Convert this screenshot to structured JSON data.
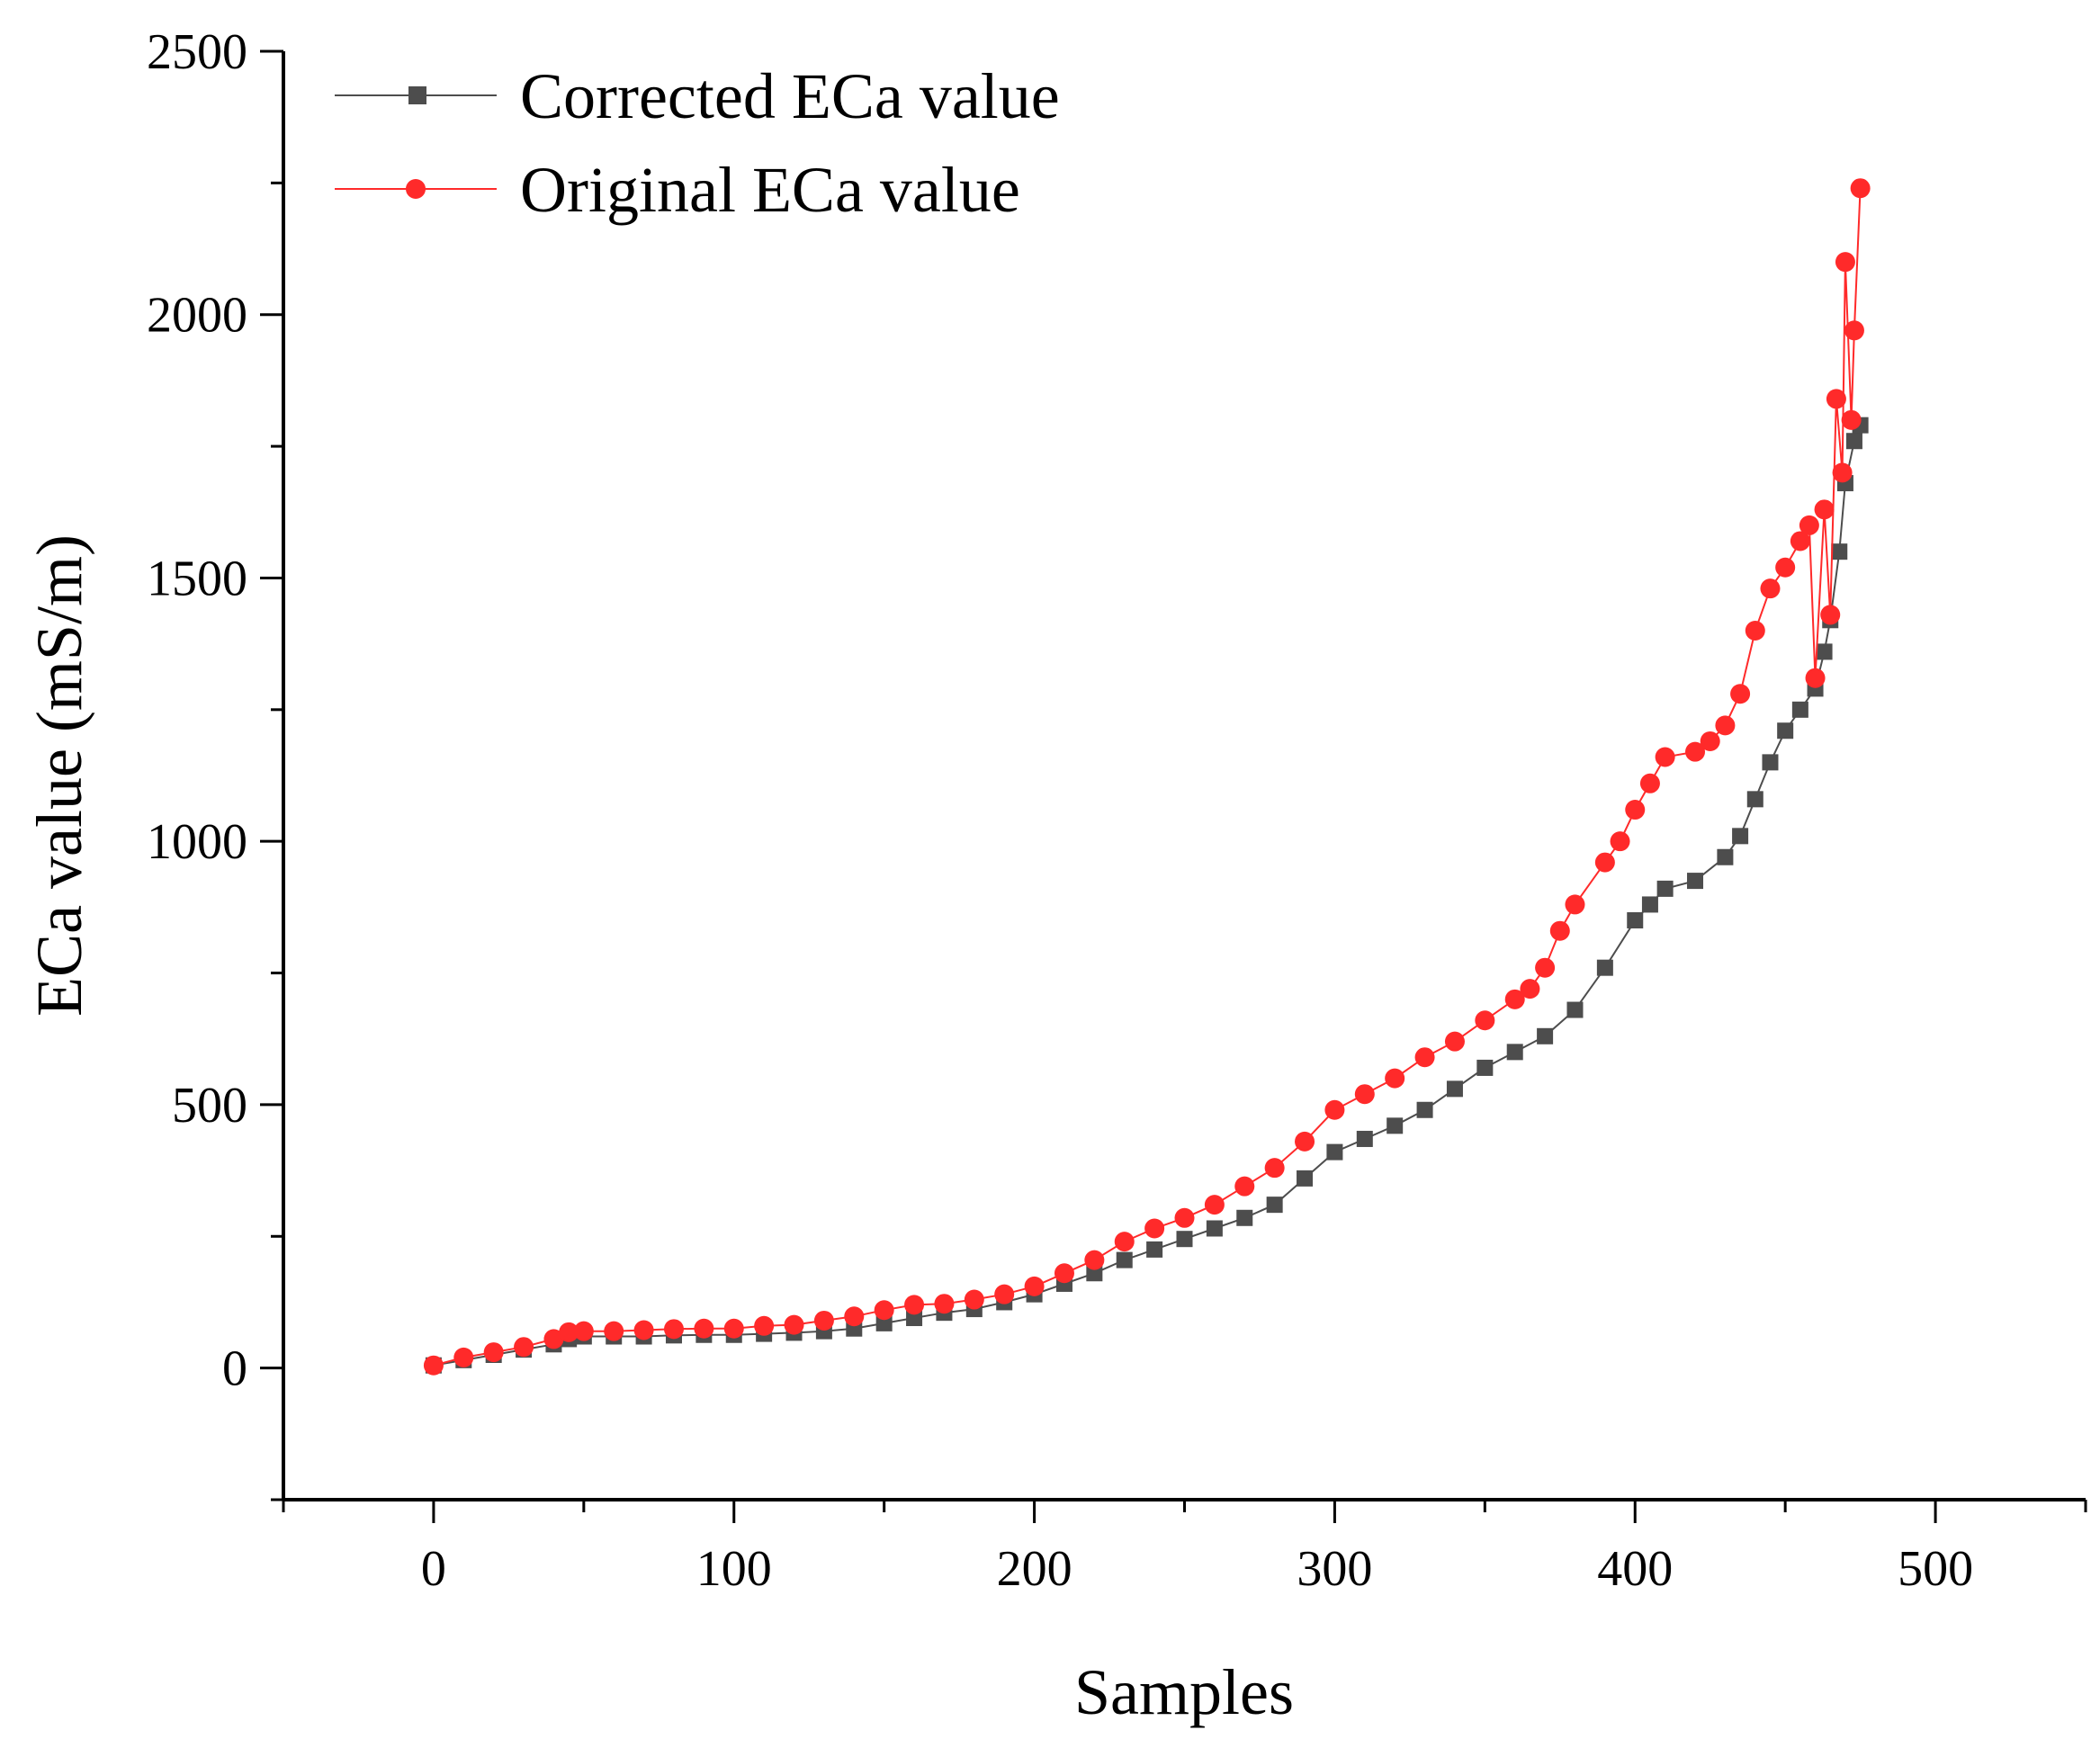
{
  "chart_data": {
    "type": "line",
    "title": "",
    "xlabel": "Samples",
    "ylabel": "ECa value (mS/m)",
    "xlim": [
      -50,
      550
    ],
    "ylim": [
      -250,
      2500
    ],
    "xticks": [
      0,
      100,
      200,
      300,
      400,
      500
    ],
    "yticks": [
      0,
      500,
      1000,
      1500,
      2000,
      2500
    ],
    "x_minor_step": 50,
    "y_minor_step": 250,
    "grid": false,
    "legend_position": "top-left",
    "colors": {
      "corrected": "#4d4d4d",
      "original": "#ff2a2a"
    },
    "markers": {
      "corrected": "square",
      "original": "circle"
    },
    "series": [
      {
        "name": "Corrected ECa value",
        "points": [
          [
            0,
            5
          ],
          [
            10,
            15
          ],
          [
            20,
            25
          ],
          [
            30,
            35
          ],
          [
            40,
            45
          ],
          [
            45,
            55
          ],
          [
            50,
            60
          ],
          [
            60,
            60
          ],
          [
            70,
            60
          ],
          [
            80,
            62
          ],
          [
            90,
            63
          ],
          [
            100,
            63
          ],
          [
            110,
            65
          ],
          [
            120,
            67
          ],
          [
            130,
            70
          ],
          [
            140,
            75
          ],
          [
            150,
            85
          ],
          [
            160,
            95
          ],
          [
            170,
            105
          ],
          [
            180,
            112
          ],
          [
            190,
            125
          ],
          [
            200,
            140
          ],
          [
            210,
            160
          ],
          [
            220,
            180
          ],
          [
            230,
            205
          ],
          [
            240,
            225
          ],
          [
            250,
            245
          ],
          [
            260,
            265
          ],
          [
            270,
            285
          ],
          [
            280,
            310
          ],
          [
            290,
            360
          ],
          [
            300,
            410
          ],
          [
            310,
            435
          ],
          [
            320,
            460
          ],
          [
            330,
            490
          ],
          [
            340,
            530
          ],
          [
            350,
            570
          ],
          [
            360,
            600
          ],
          [
            370,
            630
          ],
          [
            380,
            680
          ],
          [
            390,
            760
          ],
          [
            400,
            850
          ],
          [
            405,
            880
          ],
          [
            410,
            910
          ],
          [
            420,
            925
          ],
          [
            430,
            970
          ],
          [
            435,
            1010
          ],
          [
            440,
            1080
          ],
          [
            445,
            1150
          ],
          [
            450,
            1210
          ],
          [
            455,
            1250
          ],
          [
            460,
            1290
          ],
          [
            463,
            1360
          ],
          [
            465,
            1420
          ],
          [
            468,
            1550
          ],
          [
            470,
            1680
          ],
          [
            473,
            1760
          ],
          [
            475,
            1790
          ]
        ]
      },
      {
        "name": "Original ECa value",
        "points": [
          [
            0,
            5
          ],
          [
            10,
            20
          ],
          [
            20,
            30
          ],
          [
            30,
            40
          ],
          [
            40,
            55
          ],
          [
            45,
            68
          ],
          [
            50,
            70
          ],
          [
            60,
            70
          ],
          [
            70,
            72
          ],
          [
            80,
            74
          ],
          [
            90,
            75
          ],
          [
            100,
            75
          ],
          [
            110,
            80
          ],
          [
            120,
            82
          ],
          [
            130,
            90
          ],
          [
            140,
            98
          ],
          [
            150,
            110
          ],
          [
            160,
            120
          ],
          [
            170,
            122
          ],
          [
            180,
            130
          ],
          [
            190,
            140
          ],
          [
            200,
            155
          ],
          [
            210,
            180
          ],
          [
            220,
            205
          ],
          [
            230,
            240
          ],
          [
            240,
            265
          ],
          [
            250,
            285
          ],
          [
            260,
            310
          ],
          [
            270,
            345
          ],
          [
            280,
            380
          ],
          [
            290,
            430
          ],
          [
            300,
            490
          ],
          [
            310,
            520
          ],
          [
            320,
            550
          ],
          [
            330,
            590
          ],
          [
            340,
            620
          ],
          [
            350,
            660
          ],
          [
            360,
            700
          ],
          [
            365,
            720
          ],
          [
            370,
            760
          ],
          [
            375,
            830
          ],
          [
            380,
            880
          ],
          [
            390,
            960
          ],
          [
            395,
            1000
          ],
          [
            400,
            1060
          ],
          [
            405,
            1110
          ],
          [
            410,
            1160
          ],
          [
            420,
            1170
          ],
          [
            425,
            1190
          ],
          [
            430,
            1220
          ],
          [
            435,
            1280
          ],
          [
            440,
            1400
          ],
          [
            445,
            1480
          ],
          [
            450,
            1520
          ],
          [
            455,
            1570
          ],
          [
            458,
            1600
          ],
          [
            460,
            1310
          ],
          [
            463,
            1630
          ],
          [
            465,
            1430
          ],
          [
            467,
            1840
          ],
          [
            469,
            1700
          ],
          [
            470,
            2100
          ],
          [
            472,
            1800
          ],
          [
            473,
            1970
          ],
          [
            475,
            2240
          ]
        ]
      }
    ]
  }
}
